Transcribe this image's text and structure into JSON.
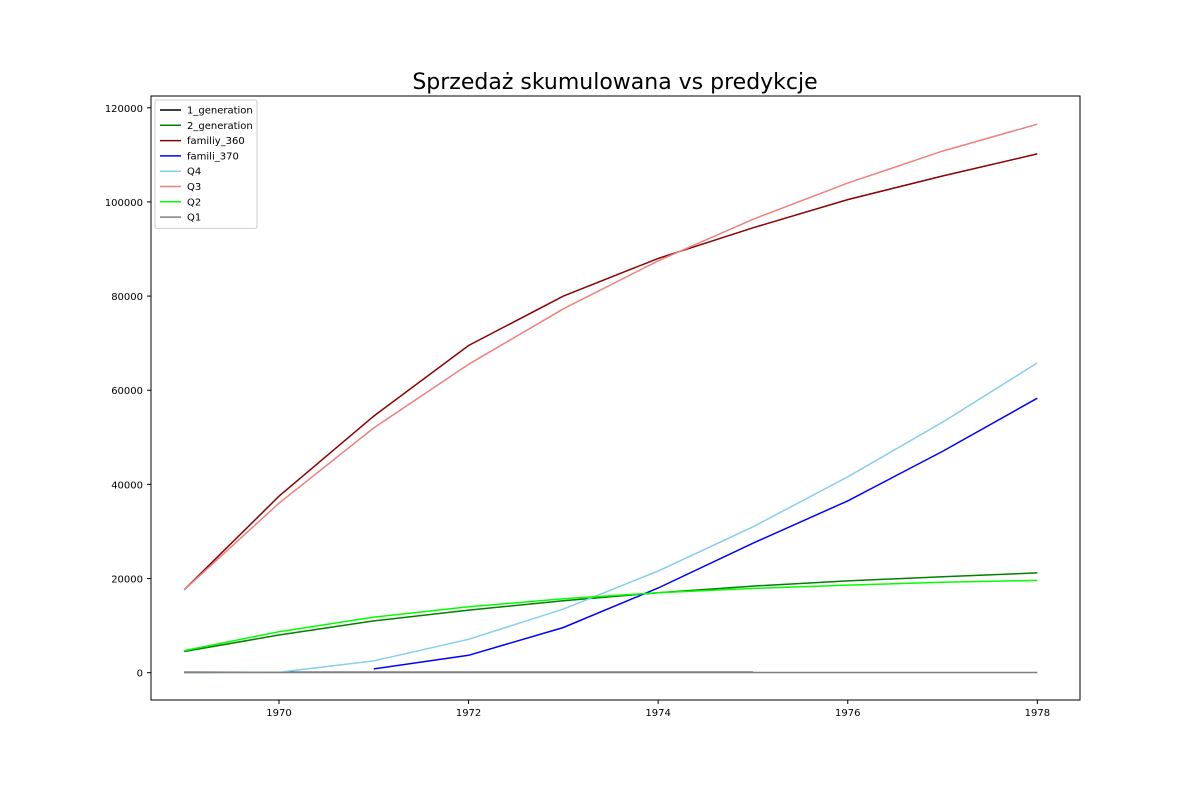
{
  "chart_data": {
    "type": "line",
    "title": "Sprzedaż skumulowana vs predykcje",
    "xlabel": "",
    "ylabel": "",
    "xlim": [
      1968.65,
      1978.45
    ],
    "ylim": [
      -5800,
      122500
    ],
    "x_ticks": [
      1970,
      1972,
      1974,
      1976,
      1978
    ],
    "y_ticks": [
      0,
      20000,
      40000,
      60000,
      80000,
      100000,
      120000
    ],
    "legend_position": "upper-left",
    "grid": false,
    "series": [
      {
        "name": "1_generation",
        "color": "#000000",
        "x": [
          1969,
          1970,
          1971,
          1972,
          1973,
          1974,
          1975
        ],
        "y": [
          100,
          100,
          100,
          100,
          100,
          100,
          100
        ]
      },
      {
        "name": "2_generation",
        "color": "#008000",
        "x": [
          1969,
          1970,
          1971,
          1972,
          1973,
          1974,
          1975,
          1976,
          1977,
          1978
        ],
        "y": [
          4500,
          8000,
          11000,
          13300,
          15300,
          17000,
          18400,
          19500,
          20400,
          21200
        ]
      },
      {
        "name": "familiy_360",
        "color": "#8b0000",
        "x": [
          1969,
          1970,
          1971,
          1972,
          1973,
          1974,
          1975,
          1976,
          1977,
          1978
        ],
        "y": [
          17600,
          37500,
          54500,
          69500,
          80000,
          88000,
          94500,
          100500,
          105500,
          110200
        ]
      },
      {
        "name": "famili_370",
        "color": "#0000ff",
        "x": [
          1971,
          1972,
          1973,
          1974,
          1975,
          1976,
          1977,
          1978
        ],
        "y": [
          800,
          3700,
          9600,
          18000,
          27500,
          36500,
          47000,
          58300
        ]
      },
      {
        "name": "Q4",
        "color": "#87ceeb",
        "x": [
          1969,
          1970,
          1971,
          1972,
          1973,
          1974,
          1975,
          1976,
          1977,
          1978
        ],
        "y": [
          0,
          100,
          2500,
          7100,
          13500,
          21600,
          31000,
          41600,
          53200,
          65800
        ]
      },
      {
        "name": "Q3",
        "color": "#f08080",
        "x": [
          1969,
          1970,
          1971,
          1972,
          1973,
          1974,
          1975,
          1976,
          1977,
          1978
        ],
        "y": [
          17600,
          36000,
          52000,
          65500,
          77300,
          87500,
          96300,
          104000,
          110800,
          116500
        ]
      },
      {
        "name": "Q2",
        "color": "#00ff00",
        "x": [
          1969,
          1970,
          1971,
          1972,
          1973,
          1974,
          1975,
          1976,
          1977,
          1978
        ],
        "y": [
          4700,
          8700,
          11800,
          14000,
          15700,
          17000,
          17900,
          18600,
          19200,
          19600
        ]
      },
      {
        "name": "Q1",
        "color": "#808080",
        "x": [
          1969,
          1970,
          1971,
          1972,
          1973,
          1974,
          1975,
          1976,
          1977,
          1978
        ],
        "y": [
          50,
          50,
          50,
          50,
          50,
          50,
          50,
          50,
          50,
          50
        ]
      }
    ]
  }
}
